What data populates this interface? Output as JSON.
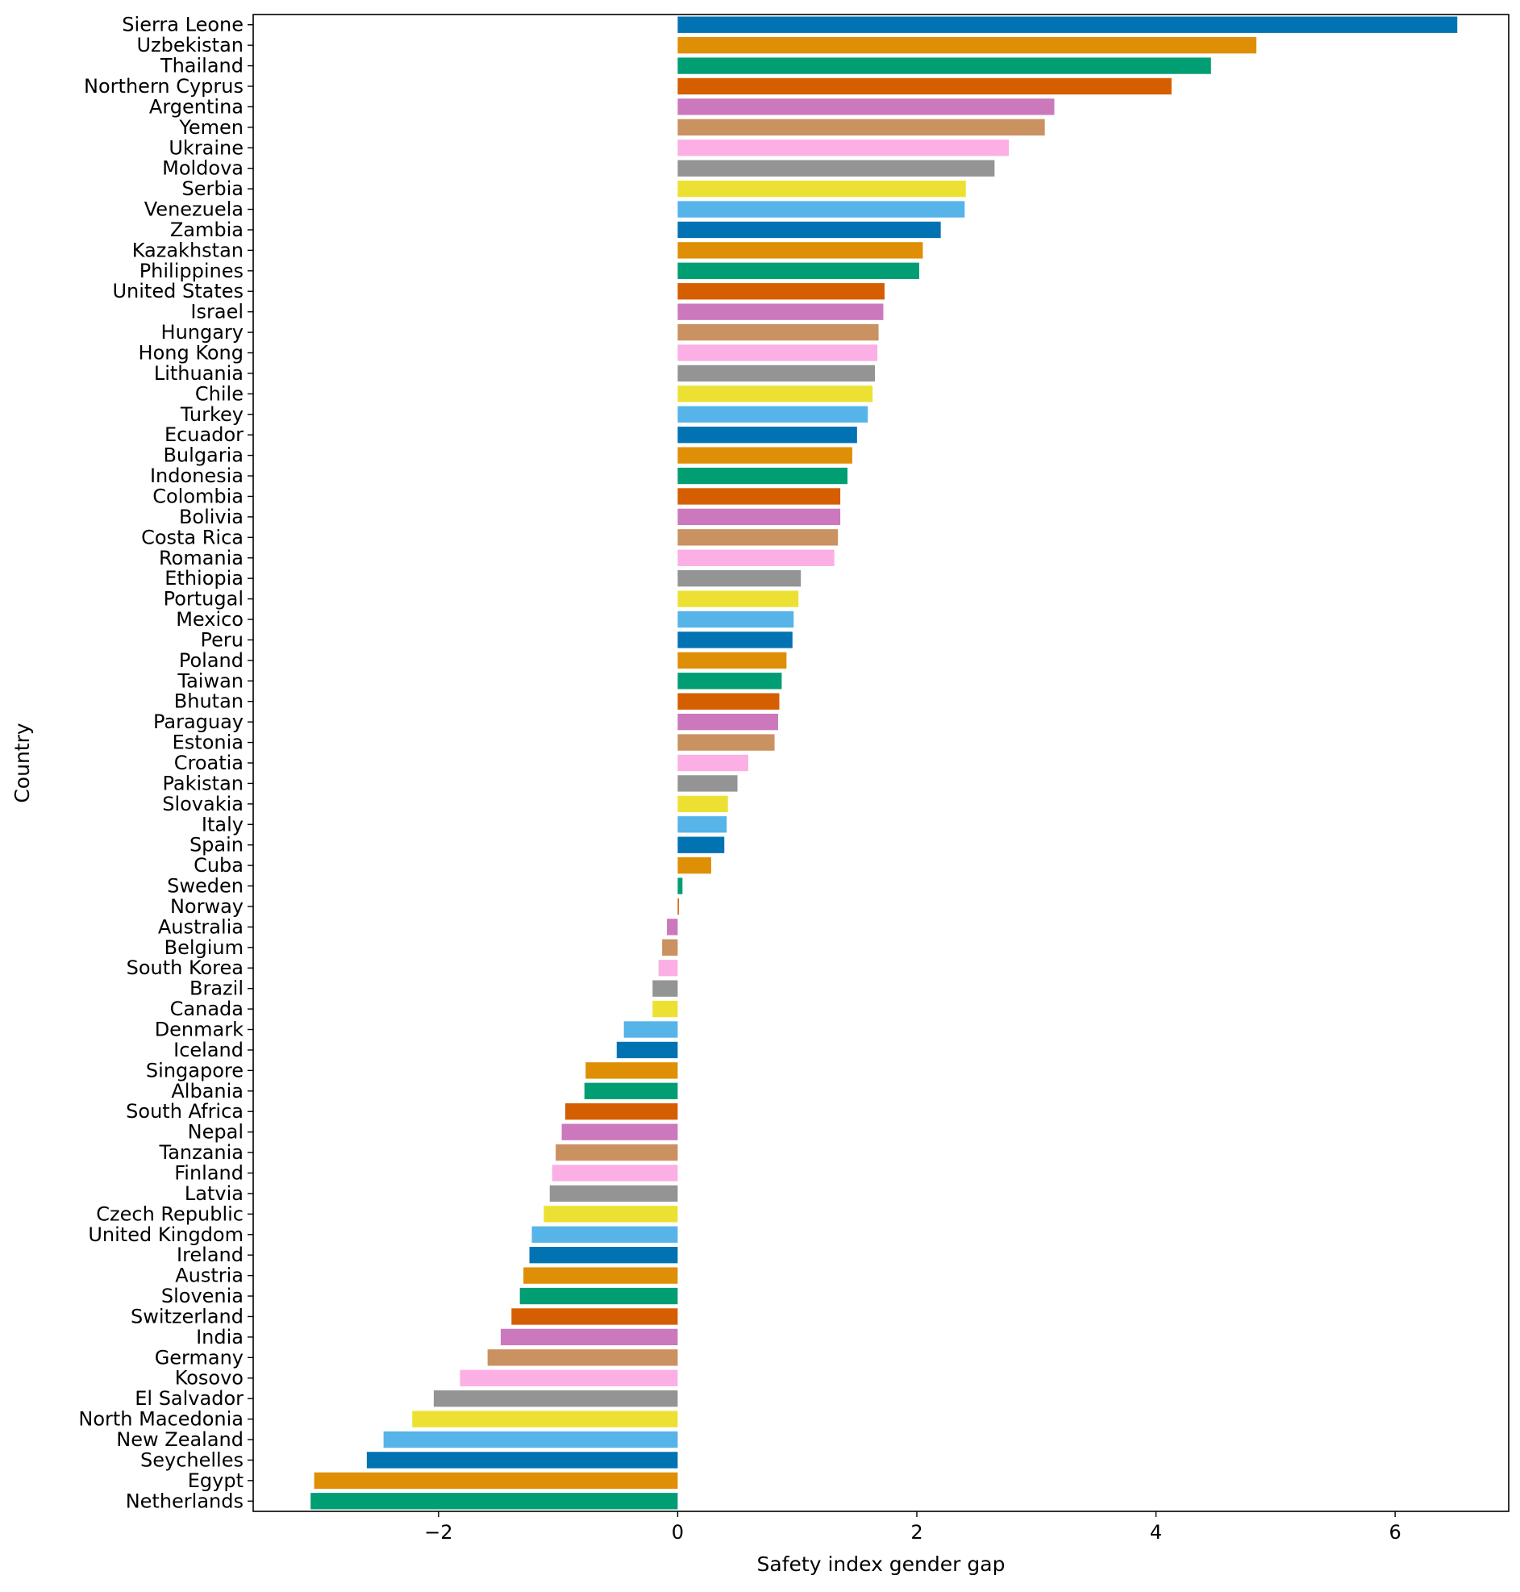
{
  "chart_data": {
    "type": "bar",
    "orientation": "horizontal",
    "xlabel": "Safety index gender gap",
    "ylabel": "Country",
    "xlim": [
      -3.55,
      6.95
    ],
    "xticks": [
      -2,
      0,
      2,
      4,
      6
    ],
    "xtick_labels": [
      "−2",
      "0",
      "2",
      "4",
      "6"
    ],
    "grid": false,
    "legend": "none",
    "palette": [
      "#0173b2",
      "#de8f05",
      "#029e73",
      "#d55e00",
      "#cc78bc",
      "#ca9161",
      "#fbafe4",
      "#949494",
      "#ece133",
      "#56b4e9"
    ],
    "categories": [
      "Sierra Leone",
      "Uzbekistan",
      "Thailand",
      "Northern Cyprus",
      "Argentina",
      "Yemen",
      "Ukraine",
      "Moldova",
      "Serbia",
      "Venezuela",
      "Zambia",
      "Kazakhstan",
      "Philippines",
      "United States",
      "Israel",
      "Hungary",
      "Hong Kong",
      "Lithuania",
      "Chile",
      "Turkey",
      "Ecuador",
      "Bulgaria",
      "Indonesia",
      "Colombia",
      "Bolivia",
      "Costa Rica",
      "Romania",
      "Ethiopia",
      "Portugal",
      "Mexico",
      "Peru",
      "Poland",
      "Taiwan",
      "Bhutan",
      "Paraguay",
      "Estonia",
      "Croatia",
      "Pakistan",
      "Slovakia",
      "Italy",
      "Spain",
      "Cuba",
      "Sweden",
      "Norway",
      "Australia",
      "Belgium",
      "South Korea",
      "Brazil",
      "Canada",
      "Denmark",
      "Iceland",
      "Singapore",
      "Albania",
      "South Africa",
      "Nepal",
      "Tanzania",
      "Finland",
      "Latvia",
      "Czech Republic",
      "United Kingdom",
      "Ireland",
      "Austria",
      "Slovenia",
      "Switzerland",
      "India",
      "Germany",
      "Kosovo",
      "El Salvador",
      "North Macedonia",
      "New Zealand",
      "Seychelles",
      "Egypt",
      "Netherlands"
    ],
    "values": [
      6.52,
      4.84,
      4.46,
      4.13,
      3.15,
      3.07,
      2.77,
      2.65,
      2.41,
      2.4,
      2.2,
      2.05,
      2.02,
      1.73,
      1.72,
      1.68,
      1.67,
      1.65,
      1.63,
      1.59,
      1.5,
      1.46,
      1.42,
      1.36,
      1.36,
      1.34,
      1.31,
      1.03,
      1.01,
      0.97,
      0.96,
      0.91,
      0.87,
      0.85,
      0.84,
      0.81,
      0.59,
      0.5,
      0.42,
      0.41,
      0.39,
      0.28,
      0.04,
      0.01,
      -0.09,
      -0.13,
      -0.16,
      -0.21,
      -0.21,
      -0.45,
      -0.51,
      -0.77,
      -0.78,
      -0.94,
      -0.97,
      -1.02,
      -1.05,
      -1.07,
      -1.12,
      -1.22,
      -1.24,
      -1.29,
      -1.32,
      -1.39,
      -1.48,
      -1.59,
      -1.82,
      -2.04,
      -2.22,
      -2.46,
      -2.6,
      -3.04,
      -3.07
    ]
  }
}
